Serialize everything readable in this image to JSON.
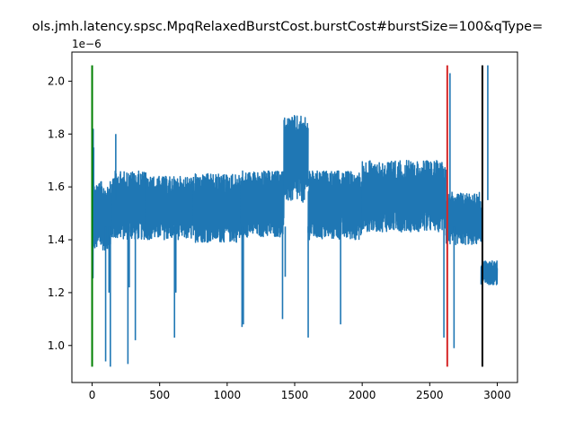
{
  "chart_data": {
    "type": "line",
    "title": "ols.jmh.latency.spsc.MpqRelaxedBurstCost.burstCost#burstSize=100&qType=",
    "offset_text": "1e−6",
    "xlabel": "",
    "ylabel": "",
    "xlim": [
      -150,
      3150
    ],
    "ylim": [
      8.6e-07,
      2.11e-06
    ],
    "x_ticks": [
      0,
      500,
      1000,
      1500,
      2000,
      2500,
      3000
    ],
    "x_tick_labels": [
      "0",
      "500",
      "1000",
      "1500",
      "2000",
      "2500",
      "3000"
    ],
    "y_ticks": [
      1e-06,
      1.2e-06,
      1.4e-06,
      1.6e-06,
      1.8e-06,
      2e-06
    ],
    "y_tick_labels": [
      "1.0",
      "1.2",
      "1.4",
      "1.6",
      "1.8",
      "2.0"
    ],
    "grid": false,
    "series": [
      {
        "color": "#1f77b4",
        "segments": [
          {
            "x_start": 0,
            "x_end": 12,
            "low": 1.22e-06,
            "high": 1.82e-06
          },
          {
            "x_start": 12,
            "x_end": 150,
            "low": 1.36e-06,
            "high": 1.62e-06
          },
          {
            "x_start": 150,
            "x_end": 400,
            "low": 1.4e-06,
            "high": 1.66e-06
          },
          {
            "x_start": 400,
            "x_end": 750,
            "low": 1.4e-06,
            "high": 1.64e-06
          },
          {
            "x_start": 750,
            "x_end": 1100,
            "low": 1.39e-06,
            "high": 1.65e-06
          },
          {
            "x_start": 1100,
            "x_end": 1420,
            "low": 1.41e-06,
            "high": 1.66e-06
          },
          {
            "x_start": 1420,
            "x_end": 1600,
            "low": 1.54e-06,
            "high": 1.87e-06
          },
          {
            "x_start": 1600,
            "x_end": 2000,
            "low": 1.4e-06,
            "high": 1.66e-06
          },
          {
            "x_start": 2000,
            "x_end": 2620,
            "low": 1.43e-06,
            "high": 1.7e-06
          },
          {
            "x_start": 2620,
            "x_end": 2880,
            "low": 1.38e-06,
            "high": 1.58e-06
          },
          {
            "x_start": 2880,
            "x_end": 3000,
            "low": 1.23e-06,
            "high": 1.32e-06
          }
        ],
        "gap": {
          "x_start": 1432,
          "x_end": 1580,
          "low": 1.4e-06,
          "high": 1.54e-06
        },
        "spikes": [
          {
            "x": 8,
            "y": 1.82e-06
          },
          {
            "x": 100,
            "y": 9.4e-07
          },
          {
            "x": 125,
            "y": 1.2e-06
          },
          {
            "x": 135,
            "y": 9.2e-07
          },
          {
            "x": 175,
            "y": 1.8e-06
          },
          {
            "x": 265,
            "y": 9.3e-07
          },
          {
            "x": 275,
            "y": 1.22e-06
          },
          {
            "x": 320,
            "y": 1.02e-06
          },
          {
            "x": 610,
            "y": 1.03e-06
          },
          {
            "x": 620,
            "y": 1.2e-06
          },
          {
            "x": 1110,
            "y": 1.07e-06
          },
          {
            "x": 1120,
            "y": 1.08e-06
          },
          {
            "x": 1410,
            "y": 1.1e-06
          },
          {
            "x": 1430,
            "y": 1.26e-06
          },
          {
            "x": 1600,
            "y": 1.03e-06
          },
          {
            "x": 1840,
            "y": 1.08e-06
          },
          {
            "x": 2605,
            "y": 1.03e-06
          },
          {
            "x": 2650,
            "y": 2.03e-06
          },
          {
            "x": 2680,
            "y": 9.9e-07
          },
          {
            "x": 2930,
            "y": 2.06e-06
          }
        ]
      }
    ],
    "vertical_lines": [
      {
        "x": 0,
        "y_start": 9.2e-07,
        "y_end": 2.06e-06,
        "color": "#008000"
      },
      {
        "x": 2630,
        "y_start": 9.2e-07,
        "y_end": 2.06e-06,
        "color": "#d62728"
      },
      {
        "x": 2890,
        "y_start": 9.2e-07,
        "y_end": 2.06e-06,
        "color": "#000000"
      }
    ]
  }
}
